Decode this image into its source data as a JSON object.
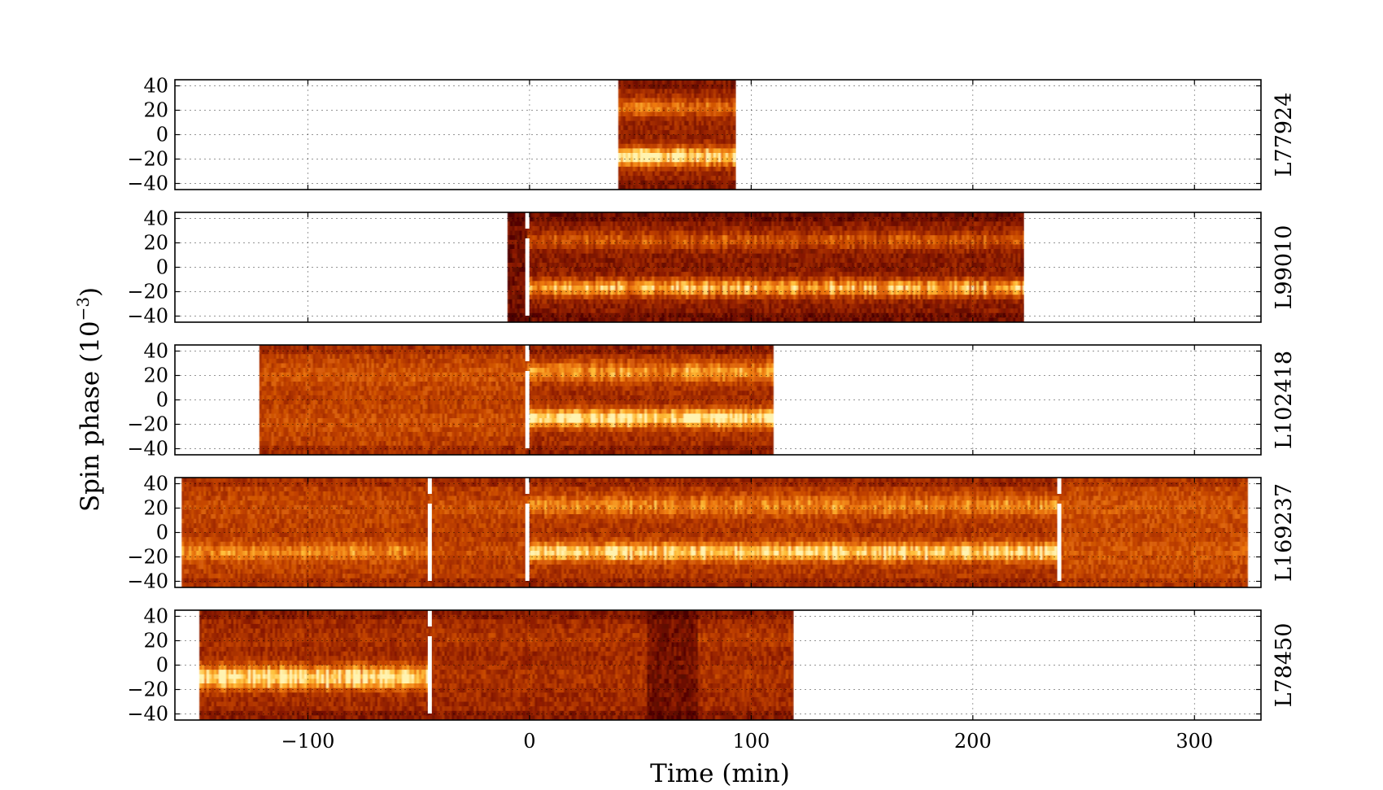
{
  "chart_data": {
    "type": "heatmap",
    "title": "",
    "xlabel": "Time (min)",
    "ylabel": "Spin phase (10",
    "ylabel_exponent": "−3",
    "ylabel_suffix": ")",
    "xlim": [
      -160,
      330
    ],
    "ylim": [
      -45,
      45
    ],
    "x_ticks": [
      -100,
      0,
      100,
      200,
      300
    ],
    "x_tick_labels": [
      "−100",
      "0",
      "100",
      "200",
      "300"
    ],
    "y_ticks": [
      40,
      20,
      0,
      -20,
      -40
    ],
    "y_tick_labels": [
      "40",
      "20",
      "0",
      "−20",
      "−40"
    ],
    "grid": true,
    "colormap": "afmhot",
    "colormap_stops": [
      "#4a0000",
      "#8a1a00",
      "#c24200",
      "#ee7a10",
      "#ffbf3a",
      "#fff3b0"
    ],
    "marker_color": "#ffffff",
    "panels": [
      {
        "label": "L77924",
        "x_range": [
          40,
          93
        ],
        "segments": [
          {
            "start": 40,
            "end": 93,
            "background": 0.25,
            "upper_band": {
              "center": 22,
              "width": 7,
              "amplitude": 0.35
            },
            "lower_band": {
              "center": -18,
              "width": 7,
              "amplitude": 0.85
            }
          }
        ],
        "markers": []
      },
      {
        "label": "L99010",
        "x_range": [
          -10,
          223
        ],
        "segments": [
          {
            "start": -10,
            "end": -1,
            "background": 0.12,
            "upper_band": {
              "center": 22,
              "width": 7,
              "amplitude": 0.0
            },
            "lower_band": {
              "center": -18,
              "width": 7,
              "amplitude": 0.05
            }
          },
          {
            "start": -1,
            "end": 223,
            "background": 0.2,
            "upper_band": {
              "center": 22,
              "width": 7,
              "amplitude": 0.3
            },
            "lower_band": {
              "center": -17,
              "width": 7,
              "amplitude": 0.65
            }
          }
        ],
        "markers": [
          -1
        ]
      },
      {
        "label": "L102418",
        "x_range": [
          -122,
          110
        ],
        "segments": [
          {
            "start": -122,
            "end": -1,
            "background": 0.38,
            "upper_band": {
              "center": 20,
              "width": 9,
              "amplitude": 0.1
            },
            "lower_band": {
              "center": -18,
              "width": 9,
              "amplitude": 0.08
            }
          },
          {
            "start": -1,
            "end": 110,
            "background": 0.3,
            "upper_band": {
              "center": 23,
              "width": 8,
              "amplitude": 0.45
            },
            "lower_band": {
              "center": -15,
              "width": 7,
              "amplitude": 0.85
            }
          }
        ],
        "markers": [
          -1
        ]
      },
      {
        "label": "L169237",
        "x_range": [
          -157,
          324
        ],
        "segments": [
          {
            "start": -157,
            "end": -45,
            "background": 0.38,
            "upper_band": {
              "center": 20,
              "width": 8,
              "amplitude": 0.05
            },
            "lower_band": {
              "center": -16,
              "width": 7,
              "amplitude": 0.3
            }
          },
          {
            "start": -45,
            "end": -1,
            "background": 0.36,
            "upper_band": {
              "center": 20,
              "width": 8,
              "amplitude": 0.12
            },
            "lower_band": {
              "center": -16,
              "width": 7,
              "amplitude": 0.08
            }
          },
          {
            "start": -1,
            "end": 239,
            "background": 0.34,
            "upper_band": {
              "center": 22,
              "width": 8,
              "amplitude": 0.35
            },
            "lower_band": {
              "center": -16,
              "width": 7,
              "amplitude": 0.7
            }
          },
          {
            "start": 239,
            "end": 324,
            "background": 0.42,
            "upper_band": {
              "center": 20,
              "width": 8,
              "amplitude": 0.06
            },
            "lower_band": {
              "center": -16,
              "width": 8,
              "amplitude": 0.06
            }
          }
        ],
        "markers": [
          -45,
          -1,
          239
        ]
      },
      {
        "label": "L78450",
        "x_range": [
          -149,
          119
        ],
        "segments": [
          {
            "start": -149,
            "end": -45,
            "background": 0.28,
            "upper_band": {
              "center": 22,
              "width": 7,
              "amplitude": 0.05
            },
            "lower_band": {
              "center": -10,
              "width": 9,
              "amplitude": 0.85
            }
          },
          {
            "start": -45,
            "end": 53,
            "background": 0.28,
            "upper_band": {
              "center": 22,
              "width": 7,
              "amplitude": 0.08
            },
            "lower_band": {
              "center": -10,
              "width": 9,
              "amplitude": 0.06
            }
          },
          {
            "start": 53,
            "end": 76,
            "background": 0.14,
            "upper_band": {
              "center": 22,
              "width": 7,
              "amplitude": 0.0
            },
            "lower_band": {
              "center": -10,
              "width": 9,
              "amplitude": 0.0
            }
          },
          {
            "start": 76,
            "end": 119,
            "background": 0.28,
            "upper_band": {
              "center": 22,
              "width": 7,
              "amplitude": 0.1
            },
            "lower_band": {
              "center": -10,
              "width": 9,
              "amplitude": 0.06
            }
          }
        ],
        "markers": [
          -45
        ]
      }
    ]
  }
}
